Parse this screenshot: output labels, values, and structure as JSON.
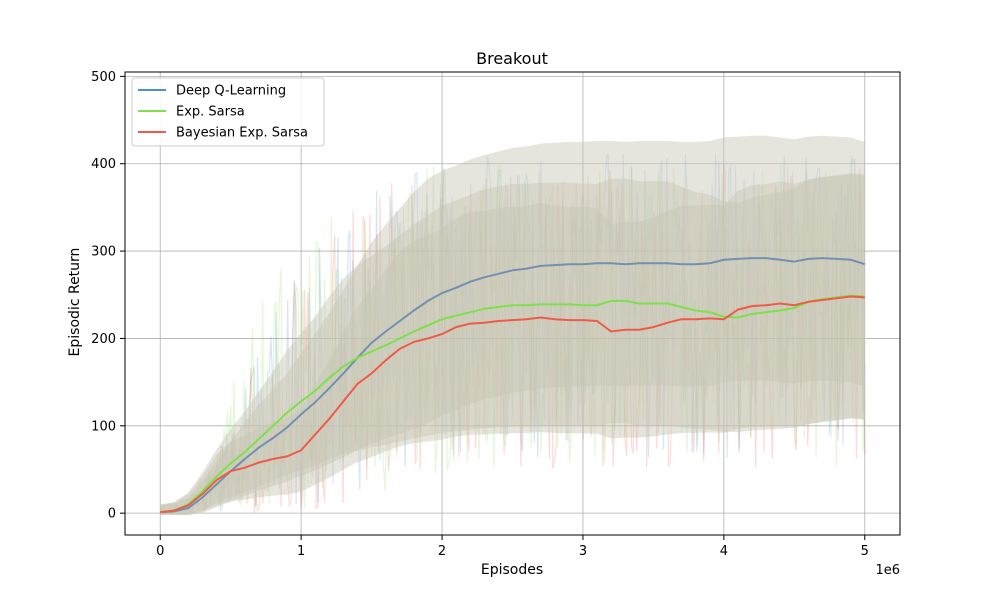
{
  "chart_data": {
    "type": "line",
    "title": "Breakout",
    "xlabel": "Episodes",
    "ylabel": "Episodic Return",
    "x_offset_label": "1e6",
    "xlim": [
      -0.25,
      5.25
    ],
    "ylim": [
      -25,
      505
    ],
    "x_ticks": [
      0,
      1,
      2,
      3,
      4,
      5
    ],
    "y_ticks": [
      0,
      100,
      200,
      300,
      400,
      500
    ],
    "grid": true,
    "legend_position": "upper-left",
    "band_color": "#c8c6b4",
    "series": [
      {
        "name": "Deep Q-Learning",
        "color": "#4a8fd4",
        "mean_color": "#7290b0",
        "x": [
          0,
          0.1,
          0.2,
          0.3,
          0.4,
          0.5,
          0.6,
          0.7,
          0.8,
          0.9,
          1.0,
          1.1,
          1.2,
          1.3,
          1.4,
          1.5,
          1.6,
          1.7,
          1.8,
          1.9,
          2.0,
          2.1,
          2.2,
          2.3,
          2.4,
          2.5,
          2.6,
          2.7,
          2.8,
          2.9,
          3.0,
          3.1,
          3.2,
          3.3,
          3.4,
          3.5,
          3.6,
          3.7,
          3.8,
          3.9,
          4.0,
          4.1,
          4.2,
          4.3,
          4.4,
          4.5,
          4.6,
          4.7,
          4.8,
          4.9,
          5.0
        ],
        "y": [
          1,
          2,
          6,
          18,
          33,
          48,
          62,
          75,
          86,
          98,
          113,
          127,
          143,
          160,
          178,
          195,
          208,
          220,
          232,
          243,
          252,
          258,
          265,
          270,
          274,
          278,
          280,
          283,
          284,
          285,
          285,
          286,
          286,
          285,
          286,
          286,
          286,
          285,
          285,
          286,
          290,
          291,
          292,
          292,
          290,
          288,
          291,
          292,
          291,
          290,
          285
        ],
        "noise_upper": [
          5,
          8,
          12,
          30,
          60,
          110,
          160,
          200,
          230,
          260,
          280,
          300,
          320,
          340,
          360,
          370,
          380,
          390,
          395,
          400,
          405,
          405,
          410,
          410,
          410,
          412,
          412,
          412,
          412,
          412,
          412,
          412,
          412,
          412,
          412,
          412,
          412,
          412,
          412,
          412,
          412,
          412,
          412,
          412,
          412,
          412,
          412,
          412,
          412,
          412,
          412
        ],
        "noise_lower": [
          0,
          0,
          0,
          0,
          0,
          0,
          0,
          0,
          0,
          0,
          0,
          10,
          15,
          20,
          25,
          30,
          35,
          40,
          45,
          50,
          60,
          60,
          60,
          60,
          60,
          60,
          60,
          60,
          60,
          60,
          60,
          60,
          60,
          60,
          60,
          60,
          60,
          60,
          60,
          60,
          60,
          60,
          60,
          60,
          60,
          60,
          60,
          60,
          60,
          60,
          60
        ]
      },
      {
        "name": "Exp. Sarsa",
        "color": "#7ee04a",
        "mean_color": "#7ee04a",
        "x": [
          0,
          0.1,
          0.2,
          0.3,
          0.4,
          0.5,
          0.6,
          0.7,
          0.8,
          0.9,
          1.0,
          1.1,
          1.2,
          1.3,
          1.4,
          1.5,
          1.6,
          1.7,
          1.8,
          1.9,
          2.0,
          2.1,
          2.2,
          2.3,
          2.4,
          2.5,
          2.6,
          2.7,
          2.8,
          2.9,
          3.0,
          3.1,
          3.2,
          3.3,
          3.4,
          3.5,
          3.6,
          3.7,
          3.8,
          3.9,
          4.0,
          4.1,
          4.2,
          4.3,
          4.4,
          4.5,
          4.6,
          4.7,
          4.8,
          4.9,
          5.0
        ],
        "y": [
          1,
          3,
          10,
          25,
          42,
          57,
          70,
          85,
          100,
          115,
          128,
          140,
          155,
          168,
          178,
          185,
          192,
          200,
          208,
          215,
          222,
          226,
          230,
          234,
          236,
          238,
          238,
          239,
          239,
          239,
          238,
          238,
          243,
          243,
          240,
          240,
          240,
          236,
          232,
          230,
          225,
          224,
          228,
          230,
          232,
          235,
          242,
          245,
          247,
          249,
          248
        ],
        "noise_upper": [
          6,
          10,
          20,
          45,
          80,
          140,
          200,
          250,
          280,
          300,
          320,
          330,
          340,
          350,
          360,
          370,
          380,
          385,
          390,
          395,
          400,
          400,
          400,
          400,
          400,
          400,
          400,
          400,
          400,
          400,
          400,
          400,
          400,
          400,
          400,
          400,
          400,
          400,
          400,
          400,
          400,
          400,
          400,
          400,
          400,
          400,
          400,
          400,
          400,
          400,
          400
        ],
        "noise_lower": [
          0,
          0,
          0,
          0,
          0,
          0,
          0,
          0,
          0,
          0,
          0,
          0,
          5,
          10,
          15,
          20,
          25,
          30,
          35,
          40,
          45,
          45,
          45,
          45,
          45,
          45,
          45,
          45,
          45,
          45,
          45,
          45,
          45,
          45,
          45,
          45,
          45,
          45,
          45,
          45,
          45,
          45,
          45,
          45,
          45,
          45,
          45,
          45,
          45,
          45,
          45
        ]
      },
      {
        "name": "Bayesian Exp. Sarsa",
        "color": "#f05a48",
        "mean_color": "#f05a48",
        "x": [
          0,
          0.1,
          0.2,
          0.3,
          0.4,
          0.5,
          0.6,
          0.7,
          0.8,
          0.9,
          1.0,
          1.1,
          1.2,
          1.3,
          1.4,
          1.5,
          1.6,
          1.7,
          1.8,
          1.9,
          2.0,
          2.1,
          2.2,
          2.3,
          2.4,
          2.5,
          2.6,
          2.7,
          2.8,
          2.9,
          3.0,
          3.1,
          3.2,
          3.3,
          3.4,
          3.5,
          3.6,
          3.7,
          3.8,
          3.9,
          4.0,
          4.1,
          4.2,
          4.3,
          4.4,
          4.5,
          4.6,
          4.7,
          4.8,
          4.9,
          5.0
        ],
        "y": [
          1,
          3,
          9,
          22,
          38,
          48,
          52,
          58,
          62,
          65,
          72,
          90,
          108,
          128,
          148,
          160,
          175,
          188,
          196,
          200,
          205,
          213,
          217,
          218,
          220,
          221,
          222,
          224,
          222,
          221,
          221,
          220,
          208,
          210,
          210,
          213,
          218,
          222,
          222,
          223,
          222,
          233,
          237,
          238,
          240,
          238,
          242,
          244,
          246,
          248,
          247
        ],
        "noise_upper": [
          6,
          10,
          18,
          40,
          70,
          120,
          170,
          210,
          240,
          270,
          290,
          310,
          330,
          345,
          360,
          370,
          380,
          385,
          390,
          395,
          400,
          400,
          400,
          400,
          400,
          400,
          400,
          400,
          400,
          400,
          400,
          400,
          400,
          400,
          400,
          400,
          400,
          400,
          400,
          400,
          400,
          400,
          400,
          400,
          400,
          400,
          400,
          400,
          400,
          400,
          400
        ],
        "noise_lower": [
          0,
          0,
          0,
          0,
          0,
          0,
          0,
          0,
          0,
          0,
          0,
          0,
          0,
          5,
          10,
          15,
          20,
          25,
          30,
          35,
          40,
          40,
          40,
          40,
          40,
          40,
          40,
          40,
          40,
          40,
          40,
          40,
          40,
          40,
          40,
          40,
          40,
          40,
          40,
          40,
          40,
          40,
          40,
          40,
          40,
          40,
          40,
          40,
          40,
          40,
          40
        ]
      }
    ]
  }
}
